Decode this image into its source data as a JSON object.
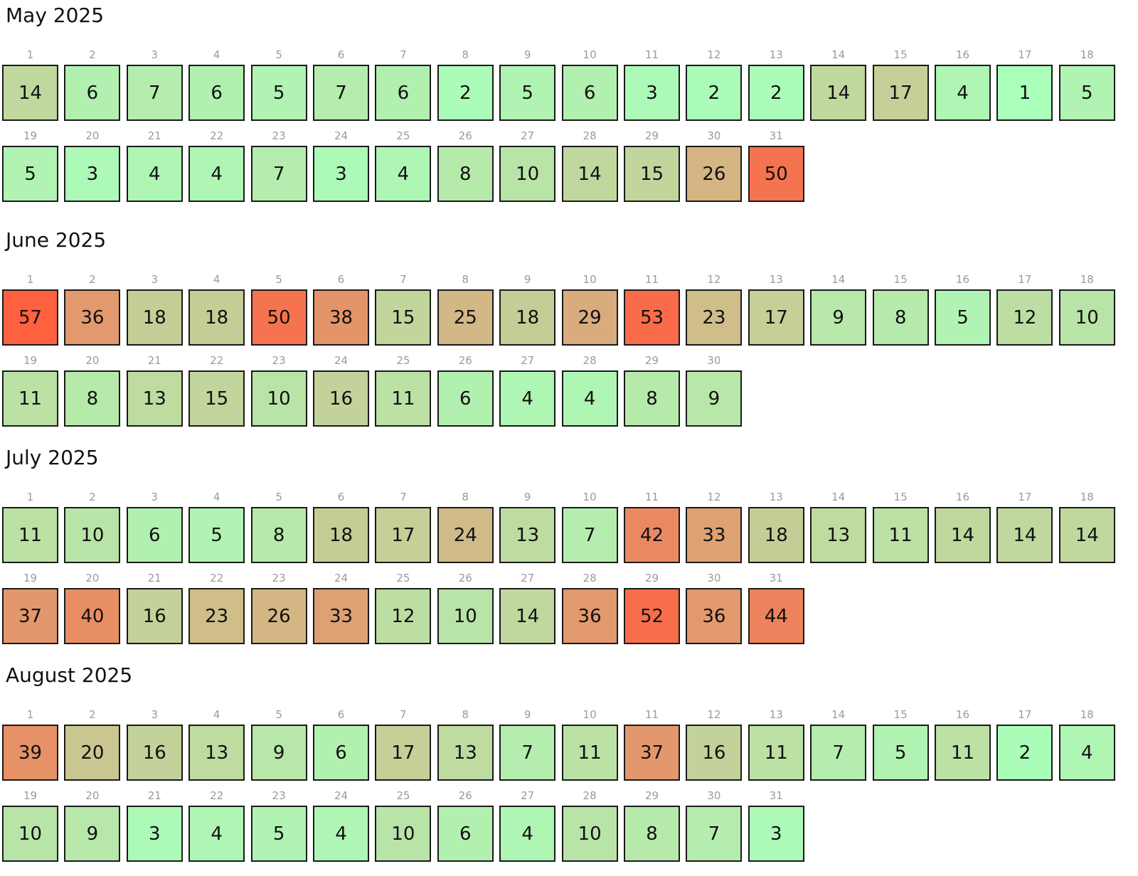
{
  "chart_data": {
    "type": "heatmap",
    "value_colors": {
      "low": "#aaffbb",
      "mid": "#d4b483",
      "high": "#ff6040"
    },
    "value_range": [
      1,
      57
    ],
    "months": [
      {
        "title": "May 2025",
        "days": [
          1,
          2,
          3,
          4,
          5,
          6,
          7,
          8,
          9,
          10,
          11,
          12,
          13,
          14,
          15,
          16,
          17,
          18,
          19,
          20,
          21,
          22,
          23,
          24,
          25,
          26,
          27,
          28,
          29,
          30,
          31
        ],
        "values": [
          14,
          6,
          7,
          6,
          5,
          7,
          6,
          2,
          5,
          6,
          3,
          2,
          2,
          14,
          17,
          4,
          1,
          5,
          5,
          3,
          4,
          4,
          7,
          3,
          4,
          8,
          10,
          14,
          15,
          26,
          50
        ]
      },
      {
        "title": "June 2025",
        "days": [
          1,
          2,
          3,
          4,
          5,
          6,
          7,
          8,
          9,
          10,
          11,
          12,
          13,
          14,
          15,
          16,
          17,
          18,
          19,
          20,
          21,
          22,
          23,
          24,
          25,
          26,
          27,
          28,
          29,
          30
        ],
        "values": [
          57,
          36,
          18,
          18,
          50,
          38,
          15,
          25,
          18,
          29,
          53,
          23,
          17,
          9,
          8,
          5,
          12,
          10,
          11,
          8,
          13,
          15,
          10,
          16,
          11,
          6,
          4,
          4,
          8,
          9
        ]
      },
      {
        "title": "July 2025",
        "days": [
          1,
          2,
          3,
          4,
          5,
          6,
          7,
          8,
          9,
          10,
          11,
          12,
          13,
          14,
          15,
          16,
          17,
          18,
          19,
          20,
          21,
          22,
          23,
          24,
          25,
          26,
          27,
          28,
          29,
          30,
          31
        ],
        "values": [
          11,
          10,
          6,
          5,
          8,
          18,
          17,
          24,
          13,
          7,
          42,
          33,
          18,
          13,
          11,
          14,
          14,
          14,
          37,
          40,
          16,
          23,
          26,
          33,
          12,
          10,
          14,
          36,
          52,
          36,
          44
        ]
      },
      {
        "title": "August 2025",
        "days": [
          1,
          2,
          3,
          4,
          5,
          6,
          7,
          8,
          9,
          10,
          11,
          12,
          13,
          14,
          15,
          16,
          17,
          18,
          19,
          20,
          21,
          22,
          23,
          24,
          25,
          26,
          27,
          28,
          29,
          30,
          31
        ],
        "values": [
          39,
          20,
          16,
          13,
          9,
          6,
          17,
          13,
          7,
          11,
          37,
          16,
          11,
          7,
          5,
          11,
          2,
          4,
          10,
          9,
          3,
          4,
          5,
          4,
          10,
          6,
          4,
          10,
          8,
          7,
          3
        ]
      }
    ]
  }
}
